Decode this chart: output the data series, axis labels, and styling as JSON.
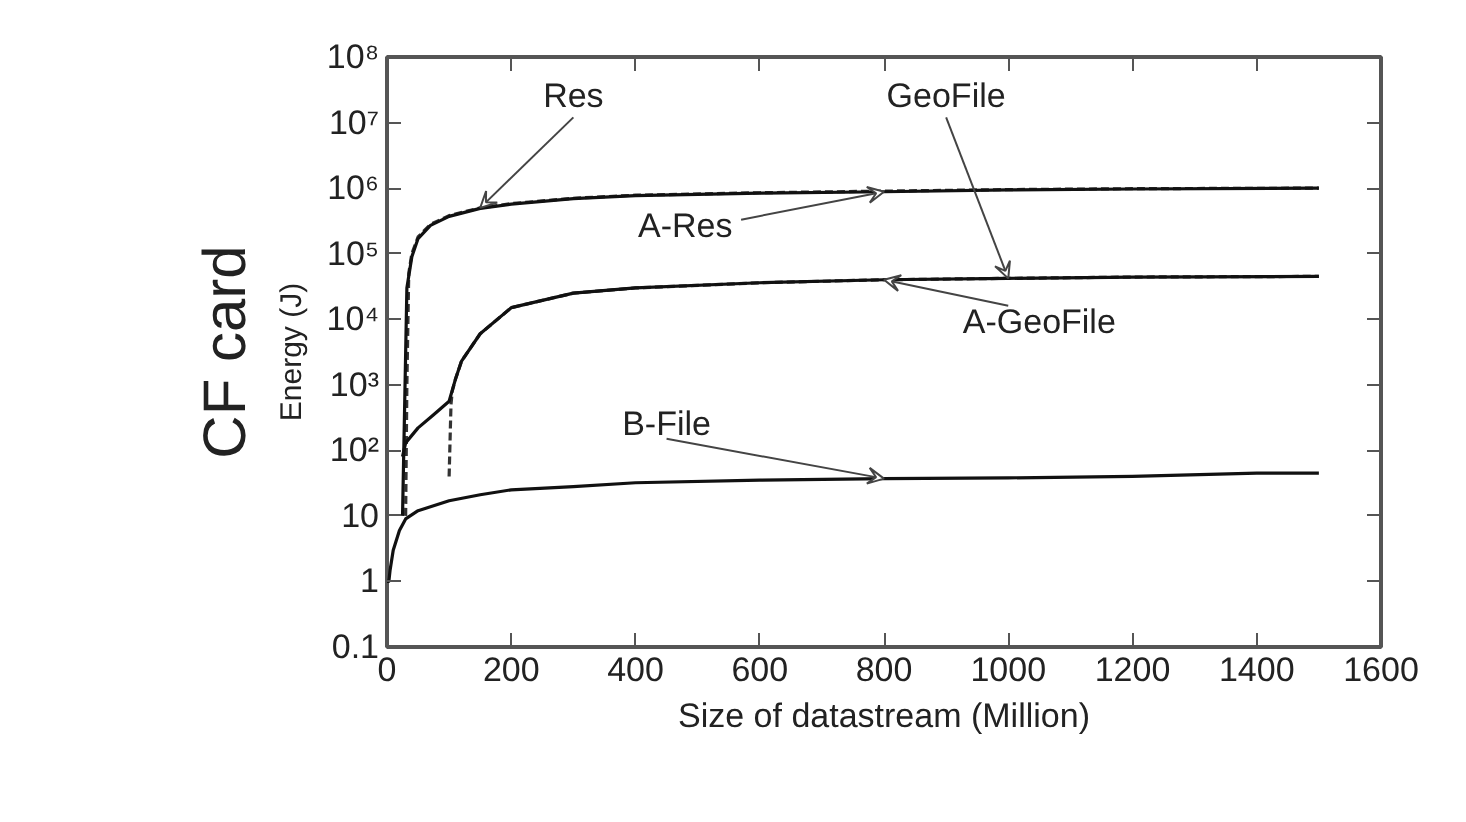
{
  "chart_data": {
    "type": "line",
    "xlabel": "Size of datastream (Million)",
    "ylabel": "Energy (J)",
    "annotations": [
      "CF card"
    ],
    "log": "y",
    "grid": false,
    "xlim": [
      0,
      1600
    ],
    "xticks": [
      0,
      200,
      400,
      600,
      800,
      1000,
      1200,
      1400,
      1600
    ],
    "ylim": [
      0.1,
      100000000
    ],
    "yticks": [
      0.1,
      1,
      10,
      {
        "value": 100,
        "label": "10²"
      },
      {
        "value": 1000,
        "label": "10³"
      },
      {
        "value": 10000,
        "label": "10⁴"
      },
      {
        "value": 100000,
        "label": "10⁵"
      },
      {
        "value": 1000000,
        "label": "10⁶"
      },
      {
        "value": 10000000,
        "label": "10⁷"
      },
      {
        "value": 100000000,
        "label": "10⁸"
      }
    ],
    "series": [
      {
        "name": "Res",
        "color": "#333333",
        "line_style": "dashed",
        "x": [
          30,
          32,
          35,
          40,
          50,
          70,
          100,
          150,
          200,
          300,
          400,
          600,
          800,
          1000,
          1200,
          1500
        ],
        "values": [
          10,
          1000,
          50000,
          100000,
          180000,
          280000,
          380000,
          500000,
          580000,
          700000,
          780000,
          850000,
          900000,
          950000,
          980000,
          1000000
        ]
      },
      {
        "name": "GeoFile",
        "color": "#333333",
        "line_style": "dashed",
        "x": [
          100,
          103,
          105,
          110,
          120,
          150,
          200,
          300,
          400,
          600,
          800,
          1000,
          1200,
          1500
        ],
        "values": [
          40,
          500,
          800,
          1200,
          2300,
          6000,
          15000,
          25000,
          30000,
          36000,
          40000,
          42000,
          44000,
          45000
        ]
      },
      {
        "name": "A-Res",
        "color": "#111111",
        "line_style": "solid",
        "x": [
          25,
          28,
          32,
          40,
          50,
          70,
          100,
          150,
          200,
          300,
          400,
          600,
          800,
          1000,
          1200,
          1500
        ],
        "values": [
          10,
          300,
          30000,
          90000,
          170000,
          270000,
          370000,
          490000,
          570000,
          690000,
          770000,
          840000,
          880000,
          940000,
          970000,
          1000000
        ]
      },
      {
        "name": "B-File",
        "color": "#111111",
        "line_style": "solid",
        "x": [
          0,
          3,
          5,
          10,
          20,
          30,
          50,
          100,
          150,
          200,
          300,
          400,
          600,
          800,
          1000,
          1200,
          1400,
          1500
        ],
        "values": [
          1,
          1,
          1.5,
          3,
          6,
          9,
          12,
          17,
          21,
          25,
          28,
          32,
          35,
          37,
          38,
          40,
          45,
          45
        ]
      },
      {
        "name": "A-GeoFile",
        "color": "#111111",
        "line_style": "solid",
        "x": [
          25,
          30,
          50,
          75,
          100,
          110,
          120,
          150,
          200,
          300,
          400,
          600,
          800,
          1000,
          1200,
          1500
        ],
        "values": [
          80,
          130,
          220,
          350,
          560,
          1200,
          2300,
          6000,
          15000,
          25000,
          30000,
          36000,
          40000,
          42000,
          44000,
          45000
        ]
      }
    ]
  }
}
